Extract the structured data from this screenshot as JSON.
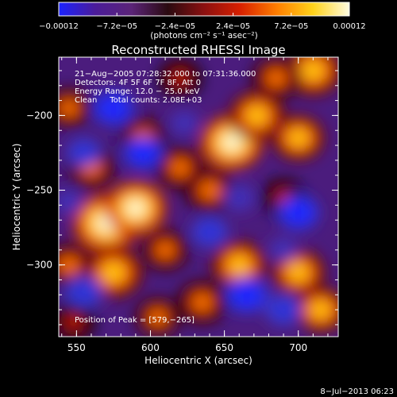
{
  "chart_data": {
    "type": "heatmap",
    "title": "Reconstructed RHESSI Image",
    "xlabel": "Heliocentric X (arcsec)",
    "ylabel": "Heliocentric Y (arcsec)",
    "xlim": [
      538,
      727
    ],
    "ylim": [
      -348,
      -161
    ],
    "x_ticks": [
      550,
      600,
      650,
      700
    ],
    "y_ticks": [
      -200,
      -250,
      -300
    ],
    "x_tick_labels": [
      "550",
      "600",
      "650",
      "700"
    ],
    "y_tick_labels": [
      "−200",
      "−250",
      "−300"
    ],
    "colorbar": {
      "range": [
        -0.00012,
        0.00012
      ],
      "tick_labels": [
        "−0.00012",
        "−7.2e−05",
        "−2.4e−05",
        "2.4e−05",
        "7.2e−05",
        "0.00012"
      ],
      "units_label": "(photons cm⁻² s⁻¹ asec⁻²)",
      "colors": [
        "#1b22ff",
        "#4b1c9a",
        "#5b2478",
        "#2a0a10",
        "#8b1010",
        "#d82000",
        "#ff7e00",
        "#ffd21a",
        "#fffce0"
      ]
    },
    "info_lines": [
      "21−Aug−2005 07:28:32.000 to 07:31:36.000",
      "Detectors: 4F 5F 6F 7F 8F, Att 0",
      "Energy Range: 12.0 − 25.0 keV",
      "Clean     Total counts: 2.08E+03"
    ],
    "peak_label": "Position of Peak = [579,−265]",
    "peak": [
      579,
      -265
    ],
    "blobs": [
      {
        "x": 570,
        "y": -272,
        "v": 1.0
      },
      {
        "x": 590,
        "y": -262,
        "v": 0.85
      },
      {
        "x": 575,
        "y": -305,
        "v": 0.8
      },
      {
        "x": 545,
        "y": -300,
        "v": 0.5
      },
      {
        "x": 655,
        "y": -218,
        "v": 0.9
      },
      {
        "x": 672,
        "y": -200,
        "v": 0.7
      },
      {
        "x": 700,
        "y": -215,
        "v": 0.6
      },
      {
        "x": 710,
        "y": -170,
        "v": 0.75
      },
      {
        "x": 685,
        "y": -175,
        "v": 0.5
      },
      {
        "x": 640,
        "y": -250,
        "v": 0.55
      },
      {
        "x": 660,
        "y": -300,
        "v": 0.7
      },
      {
        "x": 700,
        "y": -305,
        "v": 0.65
      },
      {
        "x": 635,
        "y": -325,
        "v": 0.55
      },
      {
        "x": 610,
        "y": -290,
        "v": 0.45
      },
      {
        "x": 560,
        "y": -235,
        "v": 0.5
      },
      {
        "x": 595,
        "y": -215,
        "v": 0.45
      },
      {
        "x": 620,
        "y": -235,
        "v": 0.5
      },
      {
        "x": 545,
        "y": -195,
        "v": 0.4
      },
      {
        "x": 715,
        "y": -330,
        "v": 0.6
      },
      {
        "x": 605,
        "y": -335,
        "v": 0.4
      },
      {
        "x": 620,
        "y": -175,
        "v": 0.35
      },
      {
        "x": 548,
        "y": -338,
        "v": 0.35
      },
      {
        "x": 690,
        "y": -255,
        "v": 0.35
      },
      {
        "x": 575,
        "y": -195,
        "v": -0.9
      },
      {
        "x": 595,
        "y": -225,
        "v": -0.8
      },
      {
        "x": 555,
        "y": -225,
        "v": -0.6
      },
      {
        "x": 660,
        "y": -255,
        "v": -0.55
      },
      {
        "x": 640,
        "y": -278,
        "v": -0.7
      },
      {
        "x": 700,
        "y": -265,
        "v": -0.9
      },
      {
        "x": 665,
        "y": -320,
        "v": -0.95
      },
      {
        "x": 690,
        "y": -330,
        "v": -0.7
      },
      {
        "x": 555,
        "y": -318,
        "v": -0.75
      },
      {
        "x": 545,
        "y": -258,
        "v": -0.4
      },
      {
        "x": 623,
        "y": -205,
        "v": -0.4
      },
      {
        "x": 690,
        "y": -290,
        "v": -0.4
      }
    ]
  },
  "footer": {
    "date": "8−Jul−2013 06:23"
  }
}
